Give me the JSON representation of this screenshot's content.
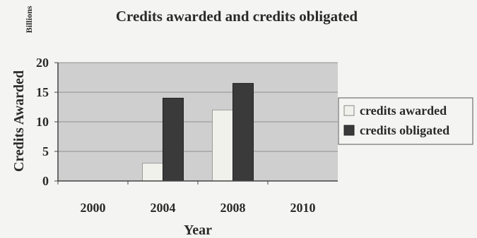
{
  "chart_data": {
    "type": "bar",
    "title": "Credits awarded and credits obligated",
    "units_label": "Billions",
    "xlabel": "Year",
    "ylabel": "Credits Awarded",
    "categories": [
      "2000",
      "2004",
      "2008",
      "2010"
    ],
    "series": [
      {
        "name": "credits awarded",
        "values": [
          0,
          3,
          12,
          0
        ],
        "color": "#f1f1ec"
      },
      {
        "name": "credits obligated",
        "values": [
          0,
          14,
          16.5,
          0
        ],
        "color": "#3a3a3a"
      }
    ],
    "ylim": [
      0,
      20
    ],
    "yticks": [
      "0",
      "5",
      "10",
      "15",
      "20"
    ],
    "grid": true,
    "legend_position": "right",
    "plot_background": "#cfcfcf"
  }
}
